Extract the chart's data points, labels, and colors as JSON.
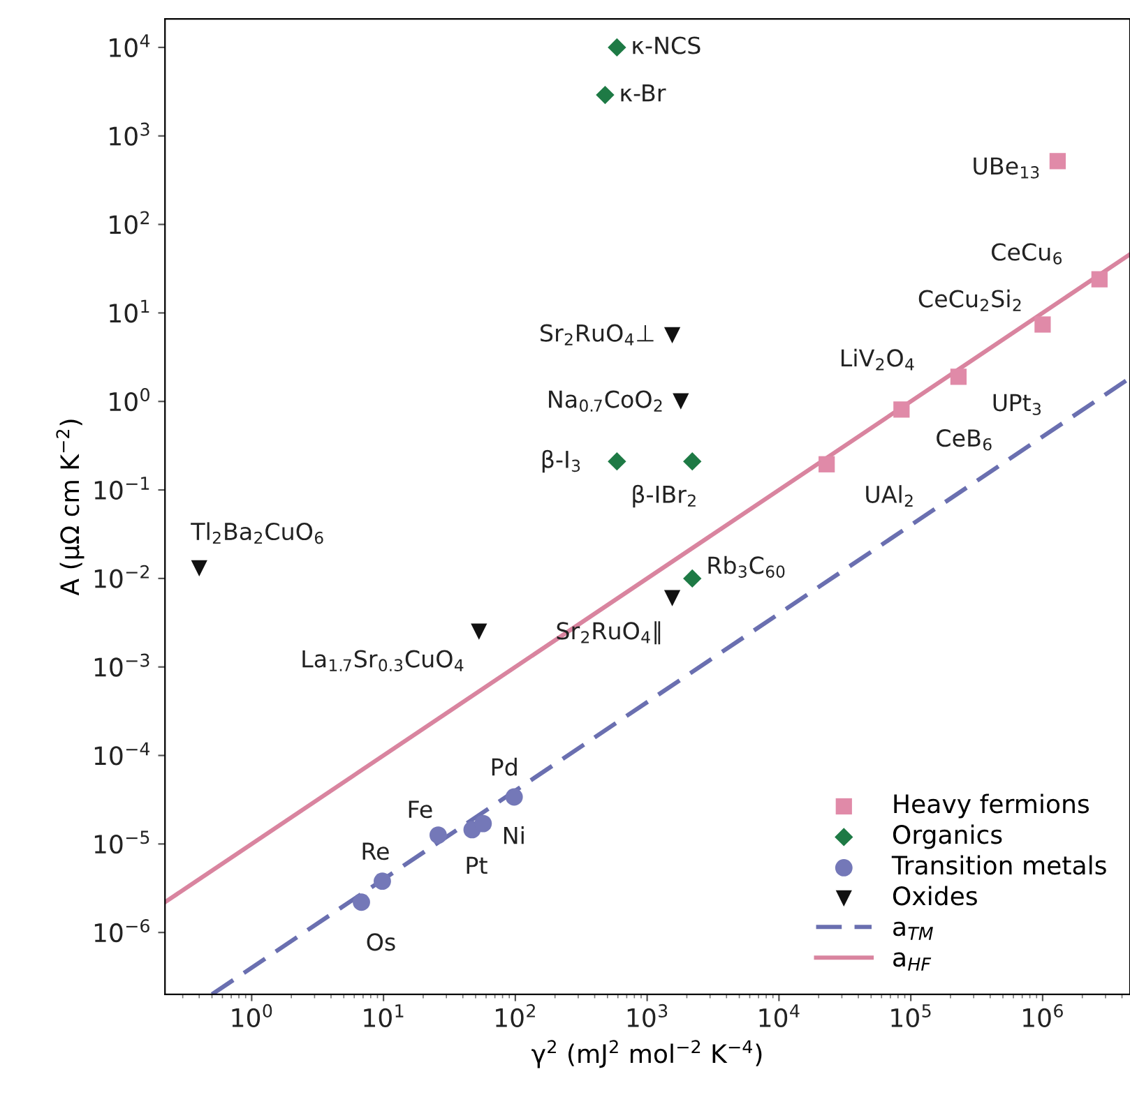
{
  "chart_data": {
    "type": "scatter",
    "xlabel": "γ$^{2}$ (mJ$^{2}$ mol$^{−2}$ K$^{−4}$)",
    "ylabel": "A (μΩ cm K$^{−2}$)",
    "log": "xy",
    "xlim": [
      0.22,
      4600000
    ],
    "ylim": [
      2e-07,
      21000
    ],
    "xticks": [
      {
        "value": 1,
        "label": "10$^{0}$"
      },
      {
        "value": 10,
        "label": "10$^{1}$"
      },
      {
        "value": 100,
        "label": "10$^{2}$"
      },
      {
        "value": 1000,
        "label": "10$^{3}$"
      },
      {
        "value": 10000,
        "label": "10$^{4}$"
      },
      {
        "value": 100000,
        "label": "10$^{5}$"
      },
      {
        "value": 1000000,
        "label": "10$^{6}$"
      }
    ],
    "yticks": [
      {
        "value": 1e-06,
        "label": "10$^{−6}$"
      },
      {
        "value": 1e-05,
        "label": "10$^{−5}$"
      },
      {
        "value": 0.0001,
        "label": "10$^{−4}$"
      },
      {
        "value": 0.001,
        "label": "10$^{−3}$"
      },
      {
        "value": 0.01,
        "label": "10$^{−2}$"
      },
      {
        "value": 0.1,
        "label": "10$^{−1}$"
      },
      {
        "value": 1,
        "label": "10$^{0}$"
      },
      {
        "value": 10,
        "label": "10$^{1}$"
      },
      {
        "value": 100,
        "label": "10$^{2}$"
      },
      {
        "value": 1000,
        "label": "10$^{3}$"
      },
      {
        "value": 10000,
        "label": "10$^{4}$"
      }
    ],
    "legend": "bottom right",
    "grid": false,
    "series": [
      {
        "name": "Heavy fermions",
        "color": "#e08aa8",
        "marker": "square",
        "x": [
          23000,
          85000,
          230000,
          1000000,
          2700000,
          1300000
        ],
        "values": [
          0.195,
          0.81,
          1.9,
          7.4,
          24,
          520
        ]
      },
      {
        "name": "Organics",
        "color": "#1e7a45",
        "marker": "diamond",
        "x": [
          590,
          480,
          590,
          2200,
          2200
        ],
        "values": [
          10000,
          2900,
          0.21,
          0.21,
          0.01
        ]
      },
      {
        "name": "Transition metals",
        "color": "#7478b8",
        "marker": "circle",
        "x": [
          6.8,
          9.8,
          26,
          47,
          57,
          98
        ],
        "values": [
          2.2e-06,
          3.8e-06,
          1.26e-05,
          1.45e-05,
          1.7e-05,
          3.4e-05
        ]
      },
      {
        "name": "Oxides",
        "color": "#111111",
        "marker": "triangle",
        "x": [
          0.4,
          53,
          1550,
          1550,
          1800
        ],
        "values": [
          0.013,
          0.0025,
          0.006,
          5.6,
          1.0
        ]
      },
      {
        "name": "a$_{TM}$",
        "type": "line",
        "line_style": "dashed",
        "color": "#6a6fb0",
        "x": [
          0.5,
          4600000
        ],
        "values": [
          2e-07,
          1.84
        ]
      },
      {
        "name": "a$_{HF}$",
        "type": "line",
        "line_style": "solid",
        "color": "#d9849f",
        "x": [
          0.22,
          4600000
        ],
        "values": [
          2.2e-06,
          46
        ]
      }
    ],
    "annotations": [
      {
        "text": "κ-NCS",
        "x": 590,
        "y": 10000
      },
      {
        "text": "κ-Br",
        "x": 480,
        "y": 2900
      },
      {
        "text": "UBe$_{13}$",
        "x": 1300000,
        "y": 520
      },
      {
        "text": "CeCu$_{6}$",
        "x": 2700000,
        "y": 24
      },
      {
        "text": "CeCu$_{2}$Si$_{2}$",
        "x": 1000000,
        "y": 7.4
      },
      {
        "text": "LiV$_{2}$O$_{4}$",
        "x": 230000,
        "y": 1.9
      },
      {
        "text": "UPt$_{3}$",
        "x": 230000,
        "y": 1.9
      },
      {
        "text": "CeB$_{6}$",
        "x": 85000,
        "y": 0.81
      },
      {
        "text": "UAl$_{2}$",
        "x": 23000,
        "y": 0.195
      },
      {
        "text": "Sr$_{2}$RuO$_{4}$⊥",
        "x": 1550,
        "y": 5.6
      },
      {
        "text": "Na$_{0.7}$CoO$_{2}$",
        "x": 1800,
        "y": 1.0
      },
      {
        "text": "β-I$_{3}$",
        "x": 590,
        "y": 0.21
      },
      {
        "text": "β-IBr$_{2}$",
        "x": 2200,
        "y": 0.21
      },
      {
        "text": "Rb$_{3}$C$_{60}$",
        "x": 2200,
        "y": 0.01
      },
      {
        "text": "Sr$_{2}$RuO$_{4}$∥",
        "x": 1550,
        "y": 0.006
      },
      {
        "text": "La$_{1.7}$Sr$_{0.3}$CuO$_{4}$",
        "x": 53,
        "y": 0.0025
      },
      {
        "text": "Tl$_{2}$Ba$_{2}$CuO$_{6}$",
        "x": 0.4,
        "y": 0.013
      },
      {
        "text": "Fe",
        "x": 26,
        "y": 1.26e-05
      },
      {
        "text": "Re",
        "x": 9.8,
        "y": 3.8e-06
      },
      {
        "text": "Os",
        "x": 6.8,
        "y": 2.2e-06
      },
      {
        "text": "Pt",
        "x": 47,
        "y": 1.45e-05
      },
      {
        "text": "Ni",
        "x": 57,
        "y": 1.7e-05
      },
      {
        "text": "Pd",
        "x": 98,
        "y": 3.4e-05
      }
    ]
  }
}
